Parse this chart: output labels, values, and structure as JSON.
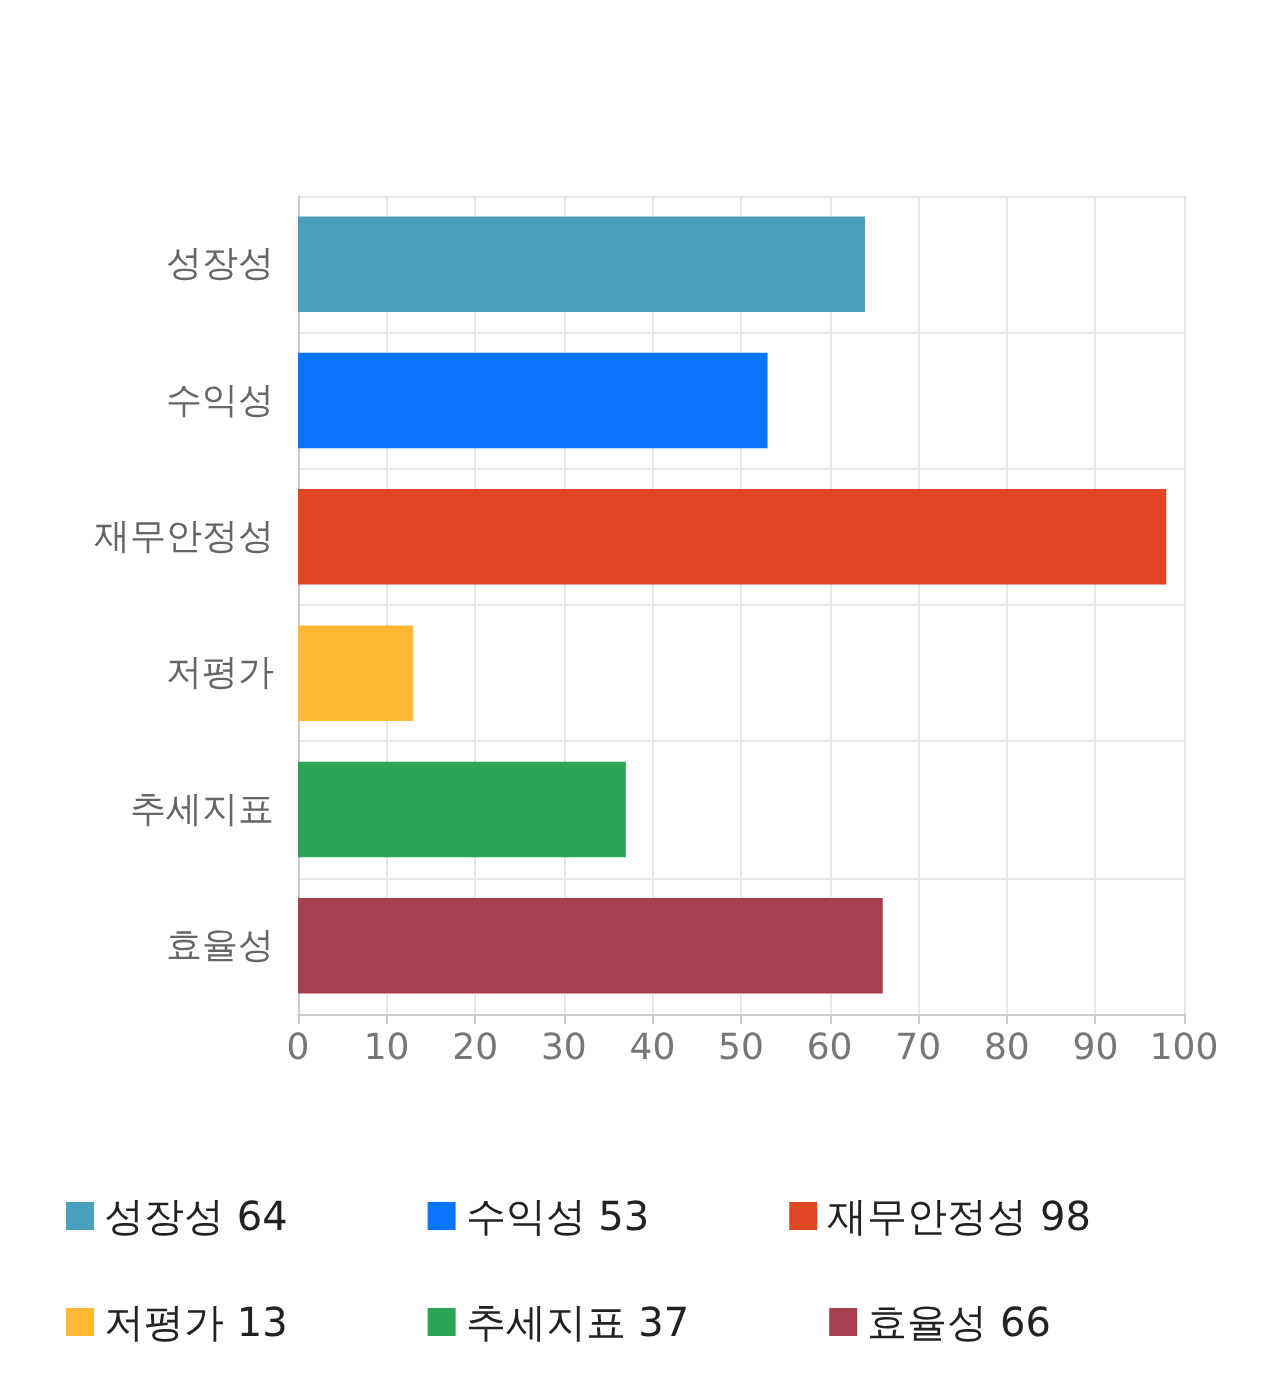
{
  "chart_data": {
    "type": "bar",
    "orientation": "horizontal",
    "stacked": true,
    "categories": [
      "성장성",
      "수익성",
      "재무안정성",
      "저평가",
      "추세지표",
      "효율성"
    ],
    "series": [
      {
        "name": "성장성 64",
        "color": "#4a9fba",
        "values": [
          64,
          null,
          null,
          null,
          null,
          null
        ]
      },
      {
        "name": "수익성 53",
        "color": "#0a75ff",
        "values": [
          null,
          53,
          null,
          null,
          null,
          null
        ]
      },
      {
        "name": "재무안정성 98",
        "color": "#e04524",
        "values": [
          null,
          null,
          98,
          null,
          null,
          null
        ]
      },
      {
        "name": "저평가 13",
        "color": "#ffb833",
        "values": [
          null,
          null,
          null,
          13,
          null,
          null
        ]
      },
      {
        "name": "추세지표 37",
        "color": "#2aa655",
        "values": [
          null,
          null,
          null,
          null,
          37,
          null
        ]
      },
      {
        "name": "효율성 66",
        "color": "#a5404e",
        "values": [
          null,
          null,
          null,
          null,
          null,
          66
        ]
      }
    ],
    "xlim": [
      0,
      100
    ],
    "xticks": [
      0,
      10,
      20,
      30,
      40,
      50,
      60,
      70,
      80,
      90,
      100
    ],
    "grid": true,
    "legend": "bottom"
  }
}
